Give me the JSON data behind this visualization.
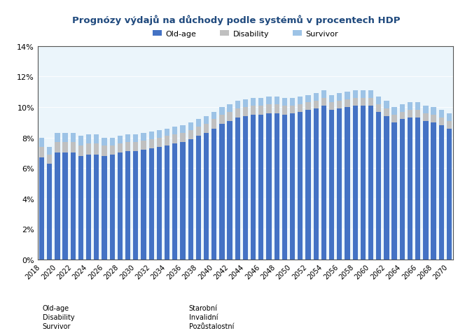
{
  "title": "Prognózy výdajů na důchody podle systémů v procentech HDP",
  "years": [
    2018,
    2019,
    2020,
    2021,
    2022,
    2023,
    2024,
    2025,
    2026,
    2027,
    2028,
    2029,
    2030,
    2031,
    2032,
    2033,
    2034,
    2035,
    2036,
    2037,
    2038,
    2039,
    2040,
    2041,
    2042,
    2043,
    2044,
    2045,
    2046,
    2047,
    2048,
    2049,
    2050,
    2051,
    2052,
    2053,
    2054,
    2055,
    2056,
    2057,
    2058,
    2059,
    2060,
    2061,
    2062,
    2063,
    2064,
    2065,
    2066,
    2067,
    2068,
    2069,
    2070
  ],
  "old_age": [
    6.7,
    6.3,
    7.0,
    7.0,
    7.0,
    6.8,
    6.9,
    6.9,
    6.8,
    6.9,
    7.0,
    7.1,
    7.1,
    7.2,
    7.3,
    7.4,
    7.5,
    7.6,
    7.7,
    7.9,
    8.1,
    8.3,
    8.6,
    8.9,
    9.1,
    9.3,
    9.4,
    9.5,
    9.5,
    9.6,
    9.6,
    9.5,
    9.6,
    9.7,
    9.8,
    9.9,
    10.1,
    9.8,
    9.9,
    10.0,
    10.1,
    10.1,
    10.1,
    9.7,
    9.4,
    9.0,
    9.2,
    9.3,
    9.3,
    9.1,
    9.0,
    8.8,
    8.6
  ],
  "disability": [
    0.7,
    0.6,
    0.7,
    0.7,
    0.7,
    0.7,
    0.7,
    0.7,
    0.7,
    0.6,
    0.6,
    0.6,
    0.6,
    0.6,
    0.6,
    0.6,
    0.6,
    0.6,
    0.6,
    0.6,
    0.6,
    0.6,
    0.6,
    0.6,
    0.6,
    0.6,
    0.6,
    0.6,
    0.6,
    0.6,
    0.6,
    0.6,
    0.5,
    0.5,
    0.5,
    0.5,
    0.5,
    0.5,
    0.5,
    0.5,
    0.5,
    0.5,
    0.5,
    0.5,
    0.5,
    0.5,
    0.5,
    0.5,
    0.5,
    0.5,
    0.5,
    0.5,
    0.5
  ],
  "survivor": [
    0.6,
    0.5,
    0.6,
    0.6,
    0.6,
    0.6,
    0.6,
    0.6,
    0.5,
    0.5,
    0.5,
    0.5,
    0.5,
    0.5,
    0.5,
    0.5,
    0.5,
    0.5,
    0.5,
    0.5,
    0.5,
    0.5,
    0.5,
    0.5,
    0.5,
    0.5,
    0.5,
    0.5,
    0.5,
    0.5,
    0.5,
    0.5,
    0.5,
    0.5,
    0.5,
    0.5,
    0.5,
    0.5,
    0.5,
    0.5,
    0.5,
    0.5,
    0.5,
    0.5,
    0.5,
    0.5,
    0.5,
    0.5,
    0.5,
    0.5,
    0.5,
    0.5,
    0.5
  ],
  "color_old_age": "#4472C4",
  "color_disability": "#C0C0C0",
  "color_survivor": "#9DC3E6",
  "color_background_plot": "#EBF5FB",
  "color_background_legend": "#DCDCDC",
  "ylim_min": 0,
  "ylim_max": 14,
  "ytick_labels": [
    "0%",
    "2%",
    "4%",
    "6%",
    "8%",
    "10%",
    "12%",
    "14%"
  ],
  "ytick_values": [
    0,
    2,
    4,
    6,
    8,
    10,
    12,
    14
  ],
  "legend_labels": [
    "Old-age",
    "Disability",
    "Survivor"
  ],
  "annotation_left": "Old-age\nDisability\nSurvivor",
  "annotation_right": "Starobní\nInvalidní\nPozůstalostní",
  "title_color": "#1F497D"
}
